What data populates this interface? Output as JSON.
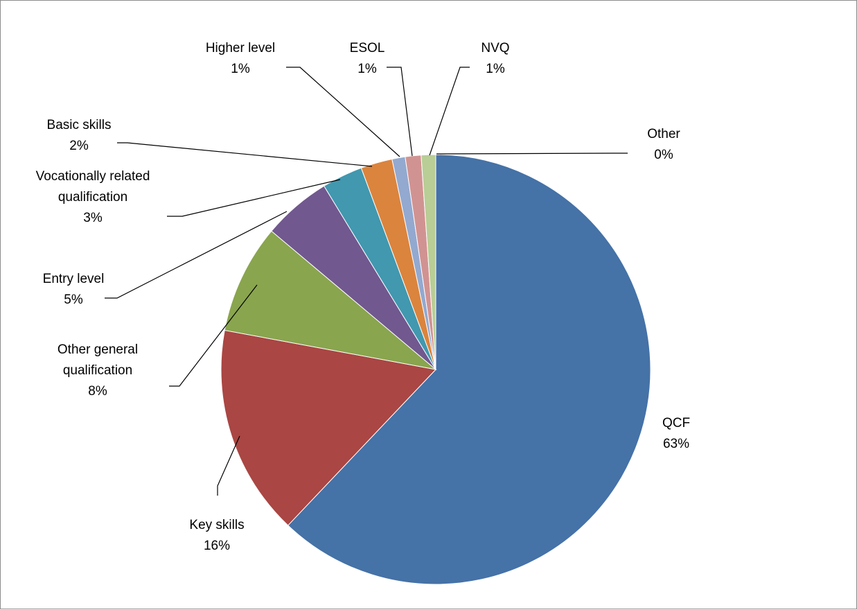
{
  "chart_data": {
    "type": "pie",
    "title": "",
    "slices": [
      {
        "key": "qcf",
        "name_lines": [
          "QCF"
        ],
        "pct_label": "63%",
        "value": 62.7,
        "color": "#4572a7"
      },
      {
        "key": "key",
        "name_lines": [
          "Key skills"
        ],
        "pct_label": "16%",
        "value": 16.0,
        "color": "#aa4643"
      },
      {
        "key": "ogq",
        "name_lines": [
          "Other general",
          "qualification"
        ],
        "pct_label": "8%",
        "value": 8.3,
        "color": "#89a54e"
      },
      {
        "key": "entry",
        "name_lines": [
          "Entry level"
        ],
        "pct_label": "5%",
        "value": 5.2,
        "color": "#71588f"
      },
      {
        "key": "vrq",
        "name_lines": [
          "Vocationally related",
          "qualification"
        ],
        "pct_label": "3%",
        "value": 3.1,
        "color": "#4198af"
      },
      {
        "key": "basic",
        "name_lines": [
          "Basic skills"
        ],
        "pct_label": "2%",
        "value": 2.4,
        "color": "#db843d"
      },
      {
        "key": "higher",
        "name_lines": [
          "Higher level"
        ],
        "pct_label": "1%",
        "value": 1.0,
        "color": "#93a9cf"
      },
      {
        "key": "esol",
        "name_lines": [
          "ESOL"
        ],
        "pct_label": "1%",
        "value": 1.2,
        "color": "#d19392"
      },
      {
        "key": "nvq",
        "name_lines": [
          "NVQ"
        ],
        "pct_label": "1%",
        "value": 1.1,
        "color": "#b9cd96"
      },
      {
        "key": "other",
        "name_lines": [
          "Other"
        ],
        "pct_label": "0%",
        "value": 0.0,
        "color": "#a99bbd"
      }
    ]
  }
}
